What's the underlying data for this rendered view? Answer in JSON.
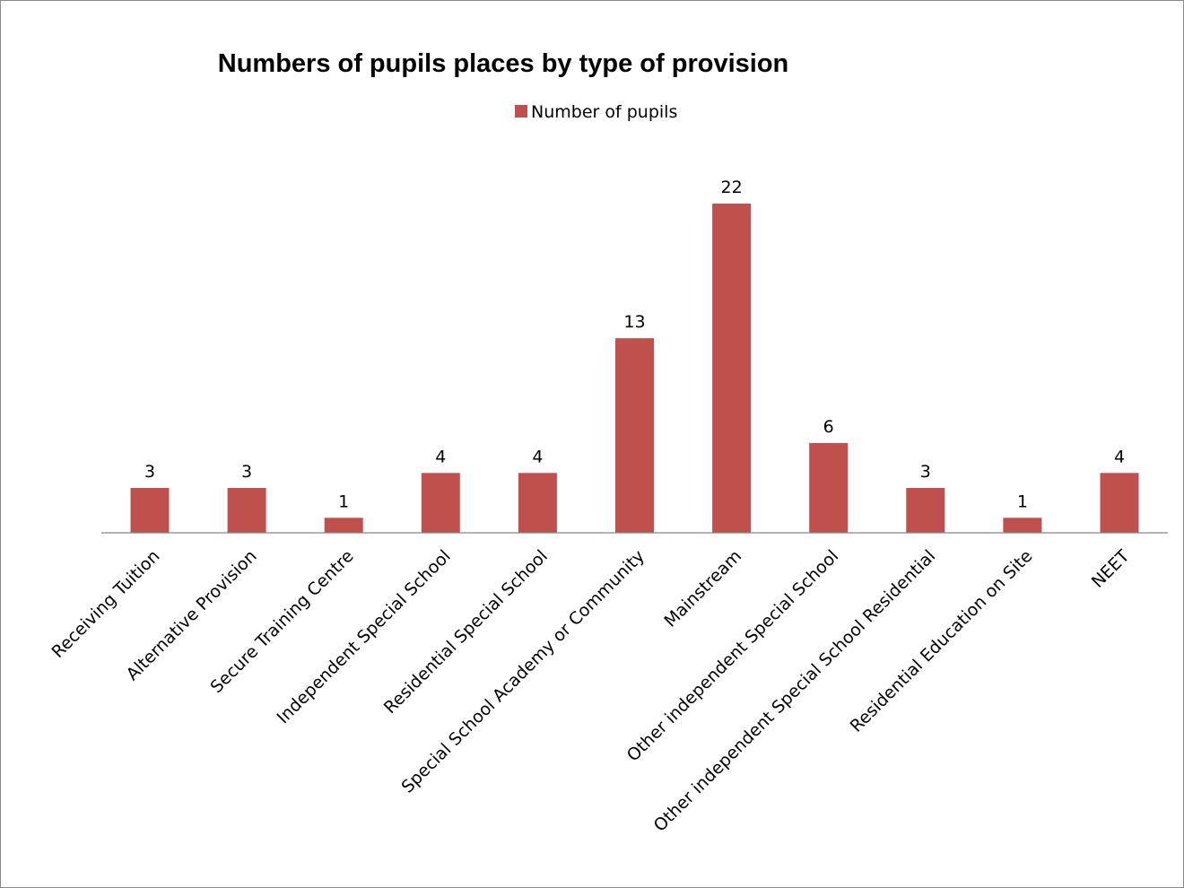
{
  "chart_data": {
    "type": "bar",
    "title": "Numbers of pupils places by type of provision",
    "xlabel": "",
    "ylabel": "",
    "categories": [
      "Receiving Tuition",
      "Alternative Provision",
      "Secure Training Centre",
      "Independent Special School",
      "Residential Special School",
      "Special School Academy or Community",
      "Mainstream",
      "Other independent Special School",
      "Other independent Special School Residential",
      "Residential Education on Site",
      "NEET"
    ],
    "series": [
      {
        "name": "Number of pupils",
        "color": "#c0504d",
        "values": [
          3,
          3,
          1,
          4,
          4,
          13,
          22,
          6,
          3,
          1,
          4
        ]
      }
    ],
    "ylim": [
      0,
      22
    ],
    "grid": false,
    "legend_position": "top",
    "data_labels": true
  }
}
